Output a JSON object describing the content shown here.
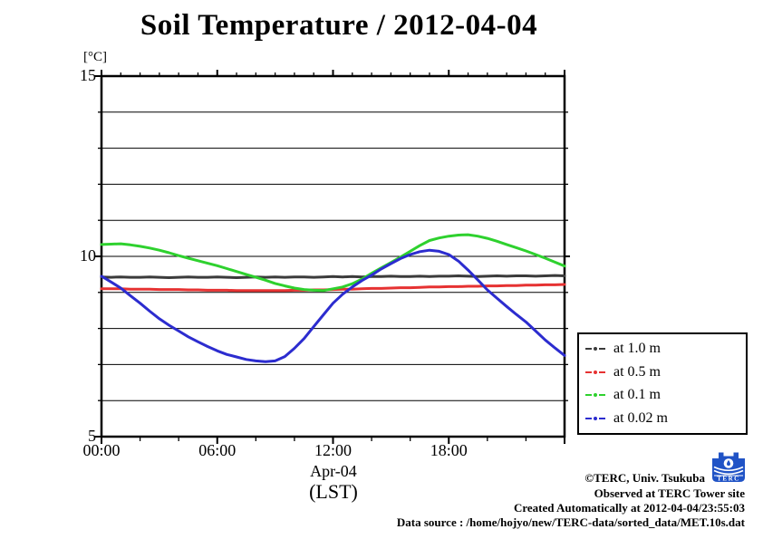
{
  "chart_data": {
    "type": "line",
    "title": "Soil Temperature / 2012-04-04",
    "ylabel": "[°C]",
    "xlabel_line1": "Apr-04",
    "xlabel_line2": "(LST)",
    "xlim": [
      0,
      24
    ],
    "ylim": [
      5,
      15
    ],
    "x_start": 0,
    "x_step": 0.5,
    "grid": "horizontal-only",
    "grid_y": [
      6,
      7,
      8,
      9,
      10,
      11,
      12,
      13,
      14
    ],
    "legend_position": "outside-right-bottom",
    "xtick_labels": [
      {
        "t": 0,
        "label": "00:00"
      },
      {
        "t": 6,
        "label": "06:00"
      },
      {
        "t": 12,
        "label": "12:00"
      },
      {
        "t": 18,
        "label": "18:00"
      }
    ],
    "ytick_labels": [
      {
        "v": 15,
        "label": "15"
      },
      {
        "v": 10,
        "label": "10"
      },
      {
        "v": 5,
        "label": "5"
      }
    ],
    "series": [
      {
        "name": "at 1.0 m",
        "color": "#3b3b3b",
        "values": [
          9.43,
          9.42,
          9.43,
          9.42,
          9.42,
          9.43,
          9.42,
          9.41,
          9.42,
          9.43,
          9.42,
          9.42,
          9.43,
          9.42,
          9.41,
          9.42,
          9.43,
          9.42,
          9.43,
          9.42,
          9.43,
          9.43,
          9.42,
          9.43,
          9.44,
          9.43,
          9.44,
          9.43,
          9.44,
          9.44,
          9.45,
          9.44,
          9.44,
          9.45,
          9.44,
          9.45,
          9.45,
          9.46,
          9.45,
          9.44,
          9.45,
          9.46,
          9.45,
          9.46,
          9.46,
          9.45,
          9.46,
          9.47,
          9.46
        ]
      },
      {
        "name": "at 0.5 m",
        "color": "#e63232",
        "values": [
          9.1,
          9.1,
          9.1,
          9.09,
          9.09,
          9.09,
          9.08,
          9.08,
          9.08,
          9.07,
          9.07,
          9.06,
          9.06,
          9.06,
          9.05,
          9.05,
          9.05,
          9.05,
          9.05,
          9.05,
          9.06,
          9.06,
          9.07,
          9.07,
          9.08,
          9.09,
          9.09,
          9.1,
          9.11,
          9.11,
          9.12,
          9.13,
          9.13,
          9.14,
          9.15,
          9.15,
          9.16,
          9.16,
          9.17,
          9.17,
          9.18,
          9.18,
          9.19,
          9.19,
          9.2,
          9.2,
          9.21,
          9.21,
          9.22
        ]
      },
      {
        "name": "at 0.1 m",
        "color": "#2ed12e",
        "values": [
          10.33,
          10.34,
          10.35,
          10.32,
          10.28,
          10.23,
          10.17,
          10.1,
          10.02,
          9.95,
          9.88,
          9.81,
          9.74,
          9.66,
          9.58,
          9.5,
          9.42,
          9.34,
          9.25,
          9.18,
          9.12,
          9.08,
          9.06,
          9.05,
          9.1,
          9.15,
          9.24,
          9.37,
          9.53,
          9.68,
          9.83,
          9.98,
          10.14,
          10.3,
          10.44,
          10.51,
          10.56,
          10.59,
          10.6,
          10.56,
          10.5,
          10.42,
          10.33,
          10.24,
          10.15,
          10.05,
          9.95,
          9.84,
          9.73
        ]
      },
      {
        "name": "at 0.02 m",
        "color": "#2c2ccf",
        "values": [
          9.45,
          9.29,
          9.12,
          8.91,
          8.7,
          8.48,
          8.27,
          8.09,
          7.93,
          7.77,
          7.63,
          7.5,
          7.38,
          7.28,
          7.21,
          7.14,
          7.1,
          7.08,
          7.1,
          7.22,
          7.45,
          7.72,
          8.05,
          8.38,
          8.7,
          8.95,
          9.15,
          9.33,
          9.48,
          9.65,
          9.8,
          9.94,
          10.05,
          10.13,
          10.17,
          10.14,
          10.05,
          9.87,
          9.62,
          9.35,
          9.07,
          8.84,
          8.61,
          8.39,
          8.18,
          7.93,
          7.68,
          7.46,
          7.25
        ]
      }
    ]
  },
  "captions": {
    "line1": "©TERC, Univ. Tsukuba",
    "line2": "Observed at TERC Tower site",
    "line3": "Created Automatically at 2012-04-04/23:55:03",
    "line4": "Data source : /home/hojyo/new/TERC-data/sorted_data/MET.10s.dat"
  },
  "logo": {
    "text": "TERC",
    "color": "#2053c6"
  }
}
